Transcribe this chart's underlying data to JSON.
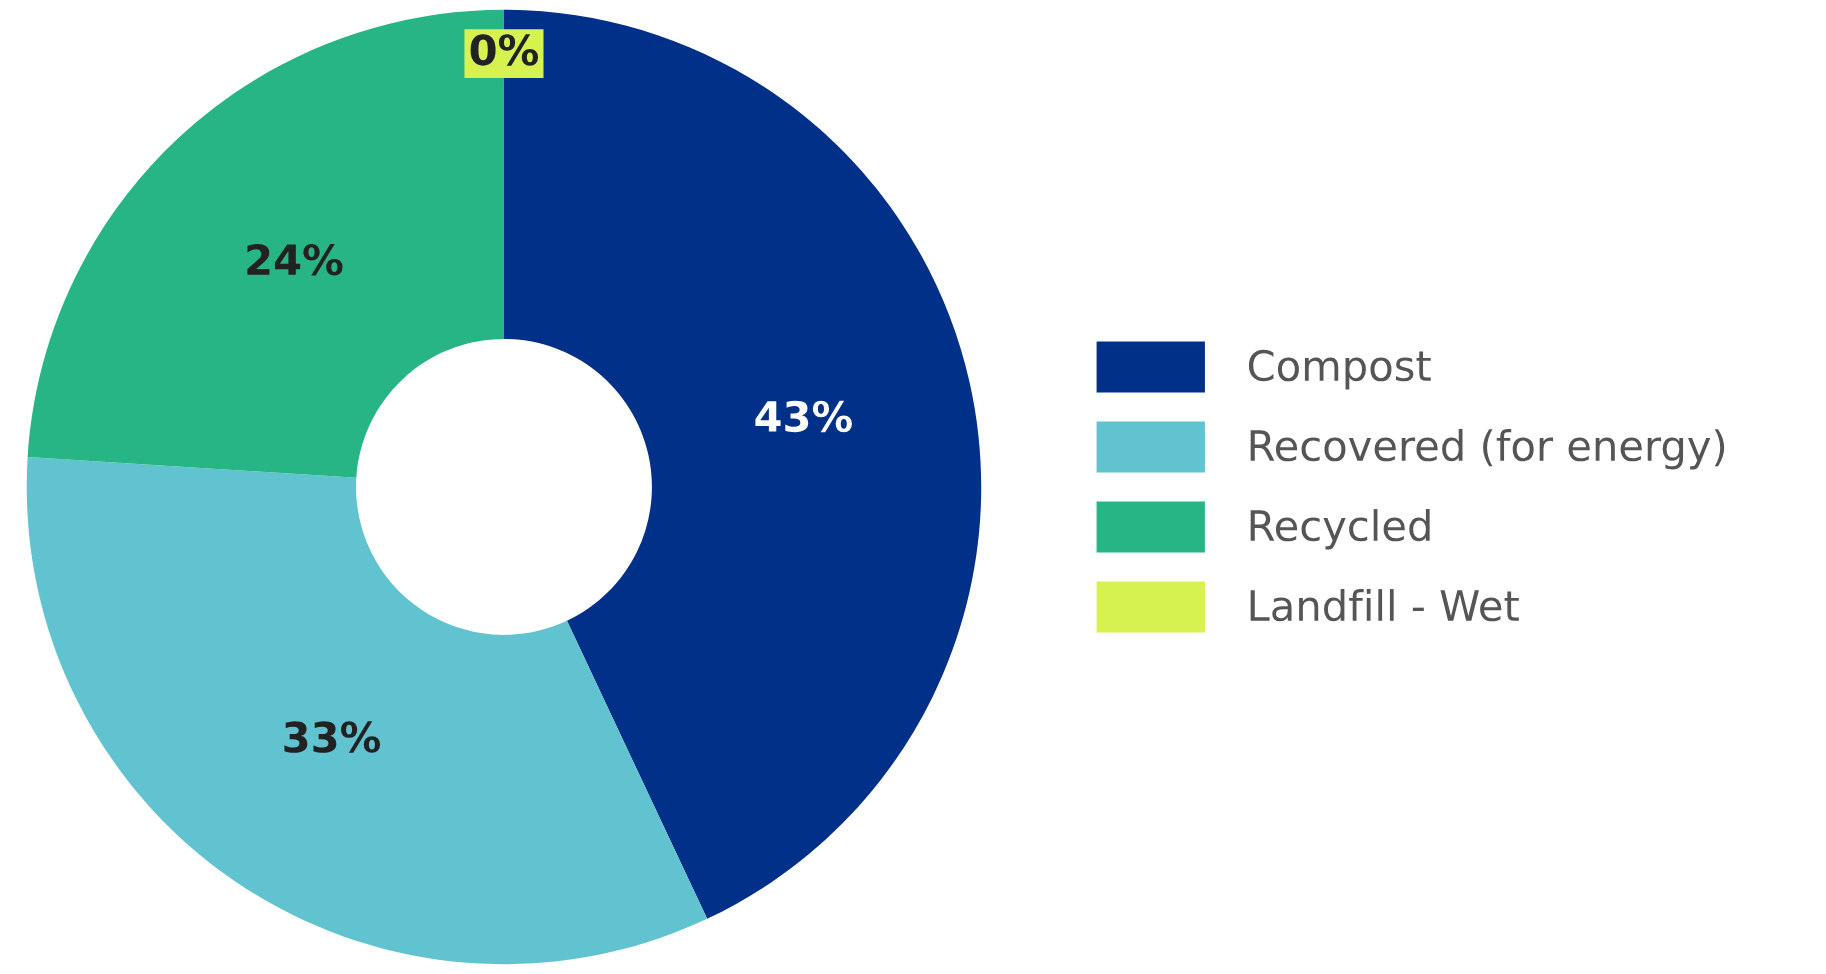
{
  "chart_data": {
    "type": "donut",
    "categories": [
      "Compost",
      "Recovered (for energy)",
      "Recycled",
      "Landfill - Wet"
    ],
    "values": [
      43,
      33,
      24,
      0
    ],
    "colors": [
      "#003087",
      "#62c3d0",
      "#27b585",
      "#d6f250"
    ],
    "value_labels": [
      "43%",
      "33%",
      "24%",
      "0%"
    ],
    "legend": "right"
  }
}
